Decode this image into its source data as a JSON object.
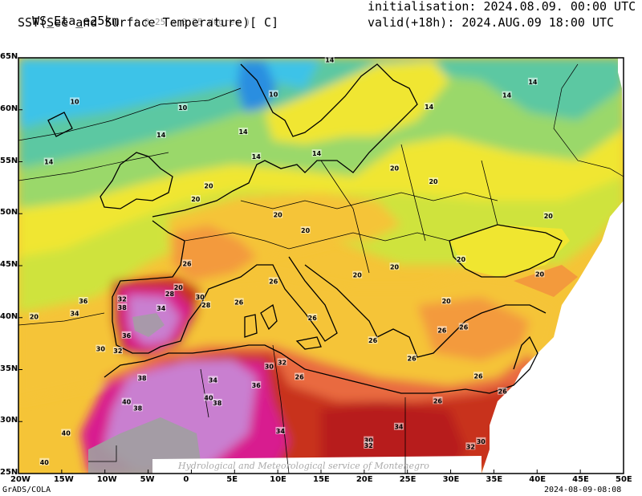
{
  "header": {
    "model": "WS_Eta_e25km",
    "resolution": "( 0.25 x 0.25 degree )",
    "field": "SST(See and Surface Temperature)[ C]",
    "init_label": "initialisation: 2024.08.09. 00:00 UTC",
    "valid_label": "valid(+18h): 2024.AUG.09 18:00 UTC"
  },
  "axes": {
    "lat_labels": [
      "65N",
      "60N",
      "55N",
      "50N",
      "45N",
      "40N",
      "35N",
      "30N",
      "25N"
    ],
    "lon_labels": [
      "20W",
      "15W",
      "10W",
      "5W",
      "0",
      "5E",
      "10E",
      "15E",
      "20E",
      "25E",
      "30E",
      "35E",
      "40E",
      "45E",
      "50E"
    ]
  },
  "footer": {
    "left": "GrADS/COLA",
    "right": "2024-08-09-08:08",
    "watermark": "Hydrological and Meteorological service of Montenegro"
  },
  "colors": {
    "c10": "#3cc3e8",
    "c14": "#5cc8a2",
    "c16": "#9ad86a",
    "c18": "#cfe33e",
    "c20": "#f0e630",
    "c24": "#f5c437",
    "c26": "#f39a3c",
    "c28": "#e96b40",
    "c30": "#c8301f",
    "c32": "#b71c1c",
    "c34": "#d81b8f",
    "c36": "#c8129a",
    "c38": "#c97fd0",
    "c40": "#a0a0a0",
    "c_cold": "#2a8ee0"
  },
  "contour_labels": [
    {
      "t": "10",
      "lon": -13.5,
      "lat": 60.8
    },
    {
      "t": "10",
      "lon": -1.0,
      "lat": 60.2
    },
    {
      "t": "10",
      "lon": 9.5,
      "lat": 61.5
    },
    {
      "t": "14",
      "lon": -16.5,
      "lat": 55.0
    },
    {
      "t": "14",
      "lon": -3.5,
      "lat": 57.6
    },
    {
      "t": "14",
      "lon": 6.0,
      "lat": 57.9
    },
    {
      "t": "14",
      "lon": 7.5,
      "lat": 55.5
    },
    {
      "t": "14",
      "lon": 14.5,
      "lat": 55.8
    },
    {
      "t": "14",
      "lon": 16.0,
      "lat": 64.8
    },
    {
      "t": "14",
      "lon": 27.5,
      "lat": 60.3
    },
    {
      "t": "14",
      "lon": 36.5,
      "lat": 61.4
    },
    {
      "t": "14",
      "lon": 39.5,
      "lat": 62.7
    },
    {
      "t": "20",
      "lon": 0.5,
      "lat": 51.4
    },
    {
      "t": "20",
      "lon": 2.0,
      "lat": 52.7
    },
    {
      "t": "20",
      "lon": 10.0,
      "lat": 49.9
    },
    {
      "t": "20",
      "lon": 23.5,
      "lat": 54.4
    },
    {
      "t": "20",
      "lon": 28.0,
      "lat": 53.1
    },
    {
      "t": "20",
      "lon": 13.2,
      "lat": 48.4
    },
    {
      "t": "20",
      "lon": 23.5,
      "lat": 44.9
    },
    {
      "t": "20",
      "lon": 19.2,
      "lat": 44.1
    },
    {
      "t": "20",
      "lon": 31.2,
      "lat": 45.6
    },
    {
      "t": "20",
      "lon": 41.3,
      "lat": 49.8
    },
    {
      "t": "20",
      "lon": 40.3,
      "lat": 44.2
    },
    {
      "t": "20",
      "lon": 29.5,
      "lat": 41.6
    },
    {
      "t": "20",
      "lon": -18.2,
      "lat": 40.1
    },
    {
      "t": "20",
      "lon": -1.5,
      "lat": 42.9
    },
    {
      "t": "26",
      "lon": -0.5,
      "lat": 45.2
    },
    {
      "t": "26",
      "lon": 9.5,
      "lat": 43.5
    },
    {
      "t": "26",
      "lon": 5.5,
      "lat": 41.5
    },
    {
      "t": "26",
      "lon": 14.0,
      "lat": 40.0
    },
    {
      "t": "26",
      "lon": 21.0,
      "lat": 37.8
    },
    {
      "t": "26",
      "lon": 25.5,
      "lat": 36.1
    },
    {
      "t": "26",
      "lon": 31.5,
      "lat": 39.1
    },
    {
      "t": "26",
      "lon": 33.2,
      "lat": 34.4
    },
    {
      "t": "26",
      "lon": 28.5,
      "lat": 32.0
    },
    {
      "t": "26",
      "lon": 36.0,
      "lat": 32.9
    },
    {
      "t": "26",
      "lon": 12.5,
      "lat": 34.3
    },
    {
      "t": "26",
      "lon": 29.0,
      "lat": 38.8
    },
    {
      "t": "28",
      "lon": -2.5,
      "lat": 42.3
    },
    {
      "t": "28",
      "lon": 1.7,
      "lat": 41.2
    },
    {
      "t": "30",
      "lon": -10.5,
      "lat": 37.0
    },
    {
      "t": "30",
      "lon": 1.0,
      "lat": 42.0
    },
    {
      "t": "30",
      "lon": 9.0,
      "lat": 35.3
    },
    {
      "t": "30",
      "lon": 20.5,
      "lat": 28.2
    },
    {
      "t": "30",
      "lon": 33.5,
      "lat": 28.1
    },
    {
      "t": "32",
      "lon": -8.0,
      "lat": 41.8
    },
    {
      "t": "32",
      "lon": -8.5,
      "lat": 36.8
    },
    {
      "t": "32",
      "lon": 20.5,
      "lat": 27.7
    },
    {
      "t": "32",
      "lon": 32.3,
      "lat": 27.6
    },
    {
      "t": "32",
      "lon": 10.5,
      "lat": 35.7
    },
    {
      "t": "34",
      "lon": -13.5,
      "lat": 40.4
    },
    {
      "t": "34",
      "lon": -3.5,
      "lat": 40.9
    },
    {
      "t": "34",
      "lon": 2.5,
      "lat": 34.0
    },
    {
      "t": "34",
      "lon": 10.3,
      "lat": 29.1
    },
    {
      "t": "34",
      "lon": 24.0,
      "lat": 29.5
    },
    {
      "t": "36",
      "lon": -12.5,
      "lat": 41.6
    },
    {
      "t": "36",
      "lon": -7.5,
      "lat": 38.3
    },
    {
      "t": "36",
      "lon": 7.5,
      "lat": 33.5
    },
    {
      "t": "38",
      "lon": -8.0,
      "lat": 41.0
    },
    {
      "t": "38",
      "lon": -5.7,
      "lat": 34.2
    },
    {
      "t": "38",
      "lon": -6.2,
      "lat": 31.3
    },
    {
      "t": "38",
      "lon": 3.0,
      "lat": 31.8
    },
    {
      "t": "40",
      "lon": -7.5,
      "lat": 31.9
    },
    {
      "t": "40",
      "lon": 2.0,
      "lat": 32.3
    },
    {
      "t": "40",
      "lon": -14.5,
      "lat": 28.9
    },
    {
      "t": "40",
      "lon": -17.0,
      "lat": 26.1
    }
  ]
}
